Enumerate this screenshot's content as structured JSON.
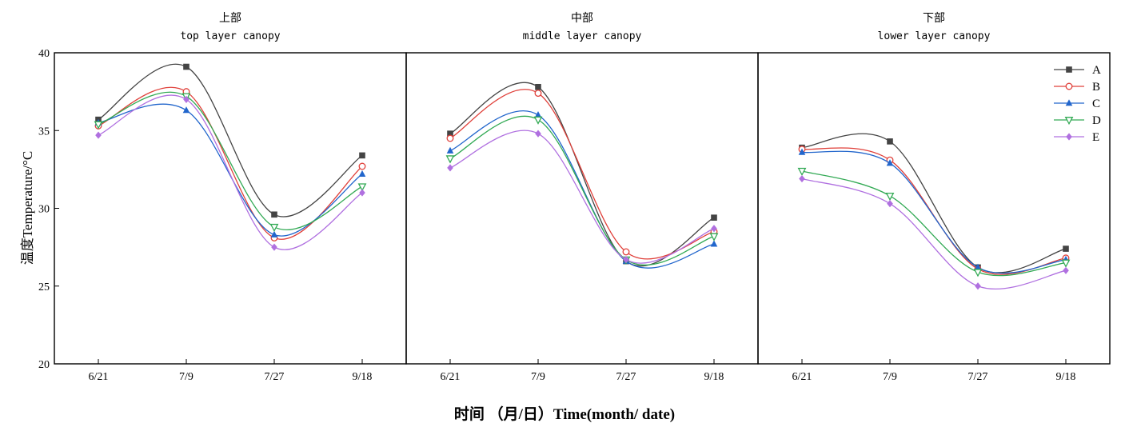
{
  "chart_data": {
    "type": "line",
    "categories": [
      "6/21",
      "7/9",
      "7/27",
      "9/18"
    ],
    "ylabel": "温度Temperature/°C",
    "xlabel": "时间 （月/日）Time(month/ date)",
    "ylim": [
      20,
      40
    ],
    "yticks": [
      20,
      25,
      30,
      35,
      40
    ],
    "legend_position": "top-right",
    "series_styles": [
      {
        "name": "A",
        "color": "#444444",
        "marker": "square"
      },
      {
        "name": "B",
        "color": "#e0403a",
        "marker": "circle-open"
      },
      {
        "name": "C",
        "color": "#2266cc",
        "marker": "triangle"
      },
      {
        "name": "D",
        "color": "#33aa55",
        "marker": "triangle-down-open"
      },
      {
        "name": "E",
        "color": "#b070e0",
        "marker": "diamond"
      }
    ],
    "panels": [
      {
        "title": "上部",
        "subtitle": "top layer canopy",
        "series": [
          {
            "name": "A",
            "values": [
              35.7,
              39.1,
              29.6,
              33.4
            ]
          },
          {
            "name": "B",
            "values": [
              35.3,
              37.5,
              28.1,
              32.7
            ]
          },
          {
            "name": "C",
            "values": [
              35.5,
              36.3,
              28.3,
              32.2
            ]
          },
          {
            "name": "D",
            "values": [
              35.4,
              37.2,
              28.8,
              31.4
            ]
          },
          {
            "name": "E",
            "values": [
              34.7,
              37.0,
              27.5,
              31.0
            ]
          }
        ]
      },
      {
        "title": "中部",
        "subtitle": "middle layer canopy",
        "series": [
          {
            "name": "A",
            "values": [
              34.8,
              37.8,
              26.6,
              29.4
            ]
          },
          {
            "name": "B",
            "values": [
              34.5,
              37.4,
              27.2,
              28.5
            ]
          },
          {
            "name": "C",
            "values": [
              33.7,
              36.0,
              26.6,
              27.7
            ]
          },
          {
            "name": "D",
            "values": [
              33.2,
              35.7,
              26.7,
              28.2
            ]
          },
          {
            "name": "E",
            "values": [
              32.6,
              34.8,
              26.7,
              28.7
            ]
          }
        ]
      },
      {
        "title": "下部",
        "subtitle": "lower layer canopy",
        "series": [
          {
            "name": "A",
            "values": [
              33.9,
              34.3,
              26.2,
              27.4
            ]
          },
          {
            "name": "B",
            "values": [
              33.8,
              33.1,
              26.1,
              26.8
            ]
          },
          {
            "name": "C",
            "values": [
              33.6,
              32.9,
              26.2,
              26.7
            ]
          },
          {
            "name": "D",
            "values": [
              32.4,
              30.8,
              25.9,
              26.5
            ]
          },
          {
            "name": "E",
            "values": [
              31.9,
              30.3,
              25.0,
              26.0
            ]
          }
        ]
      }
    ]
  }
}
